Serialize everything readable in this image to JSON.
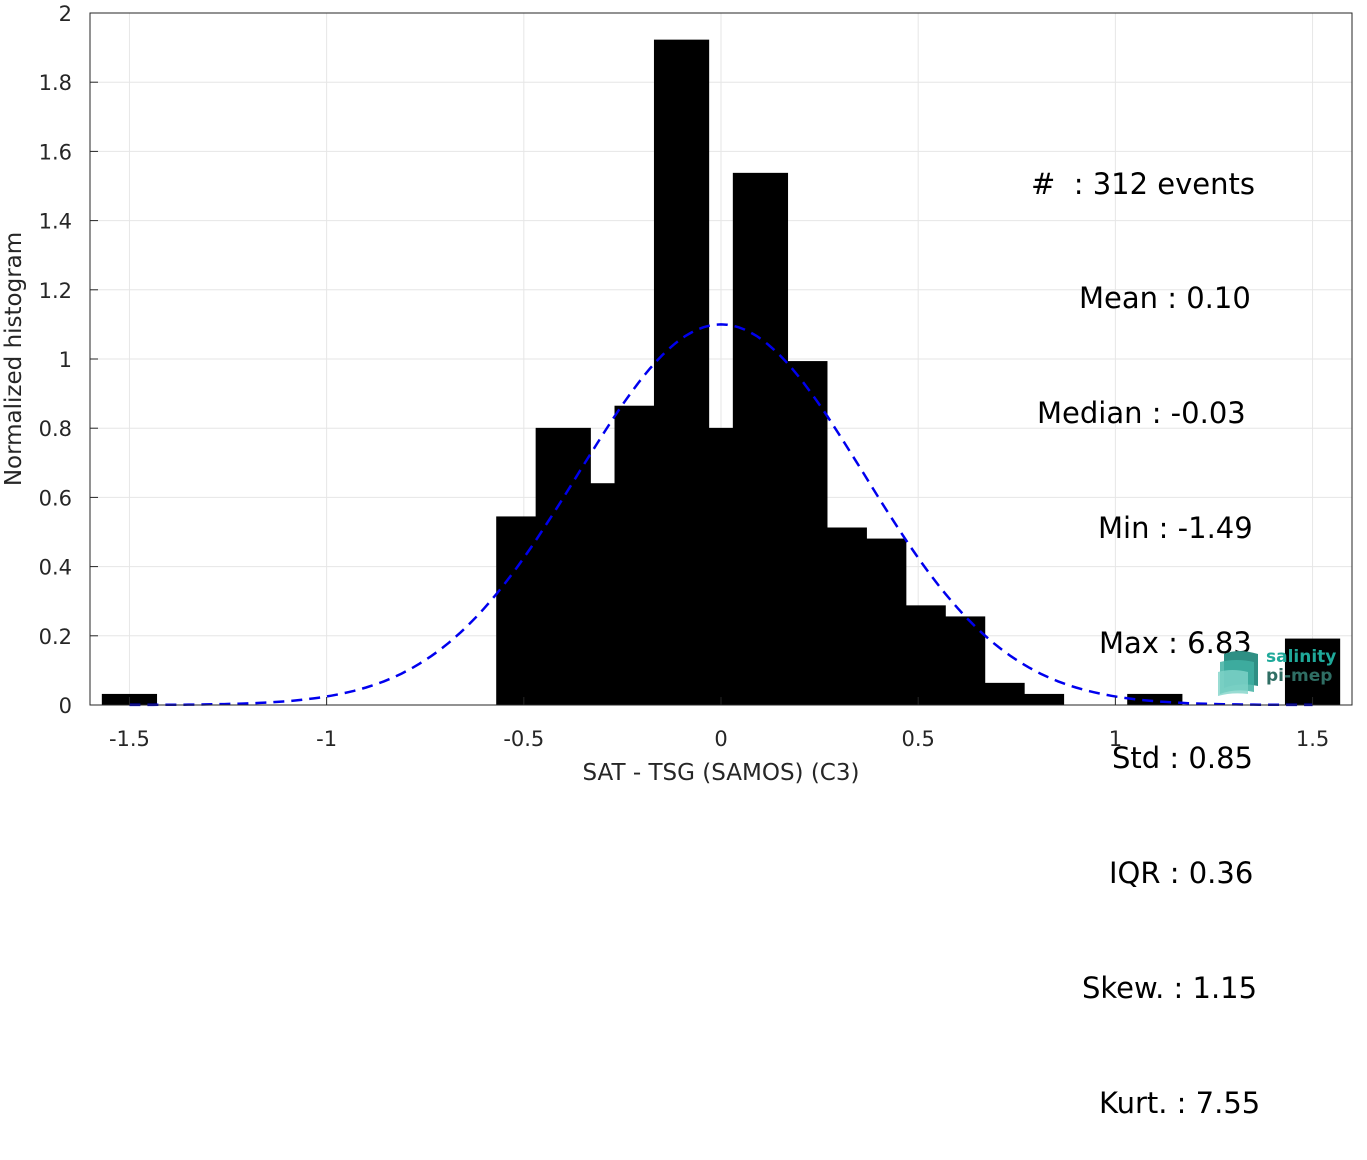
{
  "chart_data": {
    "type": "bar",
    "xlabel": "SAT - TSG (SAMOS) (C3)",
    "ylabel": "Normalized histogram",
    "xlim": [
      -1.6,
      1.6
    ],
    "ylim": [
      0,
      2
    ],
    "xticks": [
      -1.5,
      -1,
      -0.5,
      0,
      0.5,
      1,
      1.5
    ],
    "xtick_labels": [
      "-1.5",
      "-1",
      "-0.5",
      "0",
      "0.5",
      "1",
      "1.5"
    ],
    "yticks": [
      0,
      0.2,
      0.4,
      0.6,
      0.8,
      1,
      1.2,
      1.4,
      1.6,
      1.8,
      2
    ],
    "ytick_labels": [
      "0",
      "0.2",
      "0.4",
      "0.6",
      "0.8",
      "1",
      "1.2",
      "1.4",
      "1.6",
      "1.8",
      "2"
    ],
    "grid": true,
    "bar_color": "#000000",
    "bars": [
      {
        "x": -1.5,
        "y": 0.032
      },
      {
        "x": -0.5,
        "y": 0.545
      },
      {
        "x": -0.4,
        "y": 0.801
      },
      {
        "x": -0.3,
        "y": 0.641
      },
      {
        "x": -0.2,
        "y": 0.865
      },
      {
        "x": -0.1,
        "y": 1.923
      },
      {
        "x": 0.0,
        "y": 0.801
      },
      {
        "x": 0.1,
        "y": 1.538
      },
      {
        "x": 0.2,
        "y": 0.994
      },
      {
        "x": 0.3,
        "y": 0.513
      },
      {
        "x": 0.4,
        "y": 0.481
      },
      {
        "x": 0.5,
        "y": 0.288
      },
      {
        "x": 0.6,
        "y": 0.256
      },
      {
        "x": 0.7,
        "y": 0.064
      },
      {
        "x": 0.8,
        "y": 0.032
      },
      {
        "x": 1.1,
        "y": 0.032
      },
      {
        "x": 1.5,
        "y": 0.192
      }
    ],
    "fit_curve": {
      "color": "#0000ee",
      "style": "dashed",
      "mean": 0.0,
      "sigma": 0.3627,
      "peak": 1.1,
      "x_range": [
        -1.5,
        1.5
      ]
    }
  },
  "stats": [
    {
      "label": "#  : 312 events"
    },
    {
      "label": "Mean : 0.10"
    },
    {
      "label": "Median : -0.03"
    },
    {
      "label": "Min : -1.49"
    },
    {
      "label": "Max : 6.83"
    },
    {
      "label": "Std : 0.85"
    },
    {
      "label": "IQR : 0.36"
    },
    {
      "label": "Skew. : 1.15"
    },
    {
      "label": "Kurt. : 7.55"
    }
  ],
  "logo": {
    "line1": "salinity",
    "line2": "pi-mep",
    "colors": [
      "#1fa99a",
      "#2f6e64"
    ]
  }
}
